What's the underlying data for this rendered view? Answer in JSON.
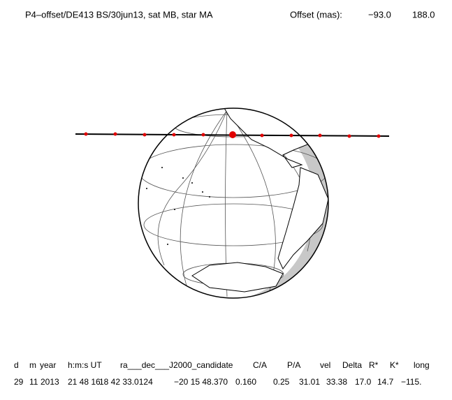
{
  "header": {
    "title": "P4–offset/DE413 BS/30jun13, sat MB, star MA",
    "offset_label": "Offset (mas):",
    "offset_values": [
      "−93.0",
      "188.0"
    ]
  },
  "table": {
    "columns": [
      "d",
      "m",
      "year",
      "h:m:s UT",
      "ra___dec___J2000_candidate",
      "C/A",
      "P/A",
      "vel",
      "Delta",
      "R*",
      "K*",
      "long"
    ],
    "rows": [
      [
        "29",
        "11",
        "2013",
        "21 48 16.",
        "18 42 33.0124",
        "−20 15 48.370",
        "0.160",
        "0.25",
        "31.01",
        "33.38",
        "17.0",
        "14.7",
        "−115."
      ]
    ]
  }
}
